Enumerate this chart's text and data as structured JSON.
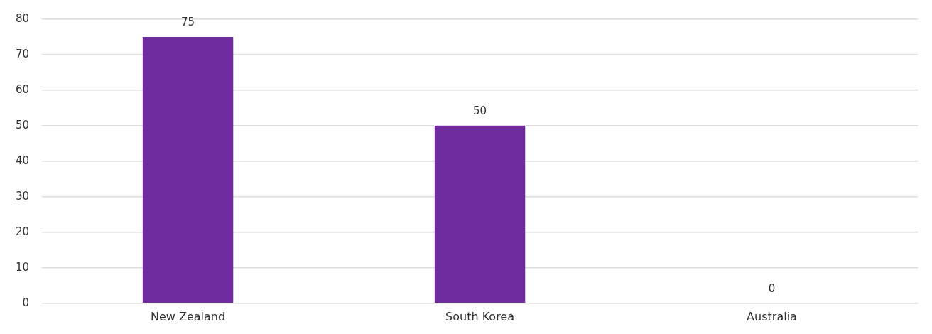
{
  "chart_data": {
    "type": "bar",
    "categories": [
      "New Zealand",
      "South Korea",
      "Australia"
    ],
    "values": [
      75,
      50,
      0
    ],
    "color": "#6e2c9e",
    "ylim": [
      0,
      80
    ],
    "yticks": [
      0,
      10,
      20,
      30,
      40,
      50,
      60,
      70,
      80
    ],
    "grid": "y",
    "data_labels": true,
    "legend": false
  }
}
